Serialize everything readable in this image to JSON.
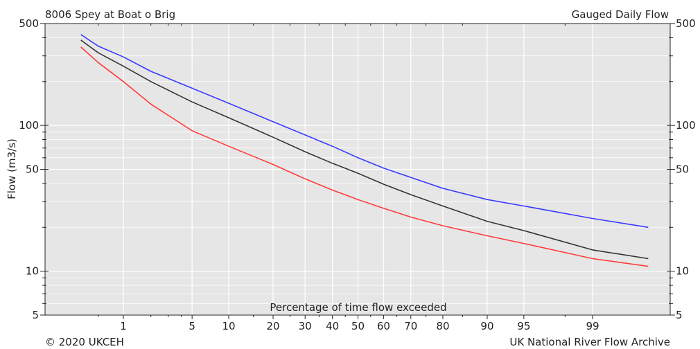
{
  "header": {
    "station": "8006 Spey at Boat o Brig",
    "series_type": "Gauged Daily Flow"
  },
  "footer": {
    "copyright": "© 2020 UKCEH",
    "source": "UK National River Flow Archive"
  },
  "chart_data": {
    "type": "line",
    "xlabel": "Percentage of time flow exceeded",
    "ylabel": "Flow (m3/s)",
    "x_scale": "normal-probability",
    "y_scale": "log",
    "ylim": [
      5,
      500
    ],
    "xlim": [
      0.3,
      99.9
    ],
    "grid": true,
    "x_ticks": [
      1,
      5,
      10,
      20,
      30,
      40,
      50,
      60,
      70,
      80,
      90,
      95,
      99
    ],
    "x_tick_labels": [
      "1",
      "5",
      "10",
      "20",
      "30",
      "40",
      "50",
      "60",
      "70",
      "80",
      "90",
      "95",
      "99"
    ],
    "y_ticks": [
      5,
      10,
      50,
      100,
      500
    ],
    "y_tick_labels": [
      "5",
      "10",
      "50",
      "100",
      "500"
    ],
    "colors": {
      "blue": "#3a3aff",
      "black": "#333333",
      "red": "#ff3a3a"
    },
    "series": [
      {
        "color": "#3a3aff",
        "x": [
          0.3,
          0.5,
          1,
          2,
          5,
          10,
          20,
          30,
          40,
          50,
          60,
          70,
          80,
          90,
          95,
          99,
          99.8
        ],
        "y": [
          420,
          350,
          295,
          235,
          180,
          142,
          106,
          86,
          72,
          60,
          51,
          44,
          37,
          31,
          28,
          23,
          20
        ]
      },
      {
        "color": "#333333",
        "x": [
          0.3,
          0.5,
          1,
          2,
          5,
          10,
          20,
          30,
          40,
          50,
          60,
          70,
          80,
          90,
          95,
          99,
          99.8
        ],
        "y": [
          385,
          315,
          255,
          200,
          145,
          113,
          83,
          66,
          55,
          47,
          39.5,
          33.5,
          28,
          22,
          19,
          14,
          12.2
        ]
      },
      {
        "color": "#ff3a3a",
        "x": [
          0.3,
          0.5,
          1,
          2,
          5,
          10,
          20,
          30,
          40,
          50,
          60,
          70,
          80,
          90,
          95,
          99,
          99.8
        ],
        "y": [
          345,
          270,
          200,
          140,
          92,
          72,
          54,
          43,
          36,
          31,
          27,
          23.5,
          20.5,
          17.5,
          15.5,
          12.2,
          10.8
        ]
      }
    ]
  }
}
